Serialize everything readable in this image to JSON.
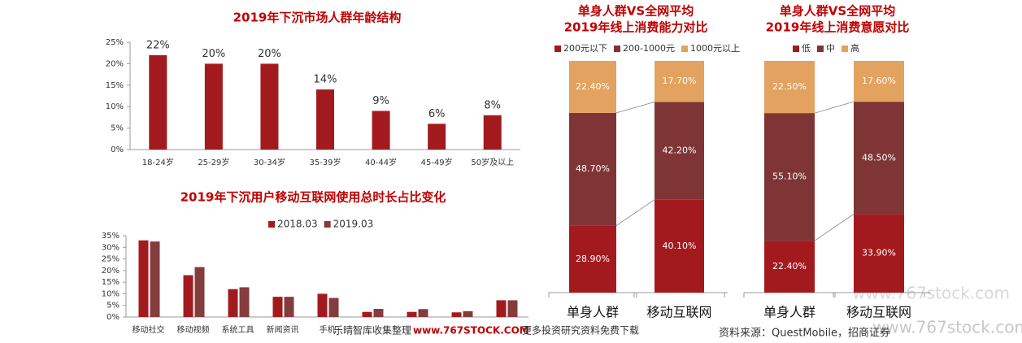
{
  "chart_data": [
    {
      "type": "bar",
      "title": "2019年下沉市场人群年龄结构",
      "categories": [
        "18-24岁",
        "25-29岁",
        "30-34岁",
        "35-39岁",
        "40-44岁",
        "45-49岁",
        "50岁及以上"
      ],
      "values": [
        22,
        20,
        20,
        14,
        9,
        6,
        8
      ],
      "value_labels": [
        "22%",
        "20%",
        "20%",
        "14%",
        "9%",
        "6%",
        "8%"
      ],
      "color": "#a31a1e",
      "ylim": [
        0,
        25
      ],
      "yticks": [
        {
          "value": 0,
          "label": "0%"
        },
        {
          "value": 5,
          "label": "5%"
        },
        {
          "value": 10,
          "label": "10%"
        },
        {
          "value": 15,
          "label": "15%"
        },
        {
          "value": 20,
          "label": "20%"
        },
        {
          "value": 25,
          "label": "25%"
        }
      ]
    },
    {
      "type": "grouped_bar",
      "title": "2019年下沉用户移动互联网使用总时长占比变化",
      "categories": [
        "移动社交",
        "移动视频",
        "系统工具",
        "新闻资讯",
        "手机",
        null,
        null,
        null,
        null
      ],
      "series": [
        {
          "name": "2018.03",
          "color": "#a31a1e",
          "values": [
            33,
            18,
            12,
            8.7,
            10,
            2.2,
            2.2,
            2,
            7.2
          ]
        },
        {
          "name": "2019.03",
          "color": "#843c3c",
          "values": [
            32.5,
            21.5,
            12.8,
            8.7,
            8.2,
            3.5,
            3.4,
            2.5,
            7.2
          ]
        }
      ],
      "legend": "top",
      "ylim": [
        0,
        35
      ],
      "yticks": [
        {
          "value": 0,
          "label": "0%"
        },
        {
          "value": 5,
          "label": "5%"
        },
        {
          "value": 10,
          "label": "10%"
        },
        {
          "value": 15,
          "label": "15%"
        },
        {
          "value": 20,
          "label": "20%"
        },
        {
          "value": 25,
          "label": "25%"
        },
        {
          "value": 30,
          "label": "30%"
        },
        {
          "value": 35,
          "label": "35%"
        }
      ]
    },
    {
      "type": "stacked_bar",
      "title": [
        "单身人群VS全网平均",
        "2019年线上消费能力对比"
      ],
      "categories": [
        "单身人群",
        "移动互联网"
      ],
      "series": [
        {
          "name": "200元以下",
          "color": "#a31a1e",
          "values": [
            28.9,
            40.1
          ],
          "value_labels": [
            "28.90%",
            "40.10%"
          ]
        },
        {
          "name": "200-1000元",
          "color": "#7f3535",
          "values": [
            48.7,
            42.2
          ],
          "value_labels": [
            "48.70%",
            "42.20%"
          ]
        },
        {
          "name": "1000元以上",
          "color": "#e3a25f",
          "values": [
            22.4,
            17.7
          ],
          "value_labels": [
            "22.40%",
            "17.70%"
          ]
        }
      ],
      "legend": "top",
      "ylim": [
        0,
        100
      ]
    },
    {
      "type": "stacked_bar",
      "title": [
        "单身人群VS全网平均",
        "2019年线上消费意愿对比"
      ],
      "categories": [
        "单身人群",
        "移动互联网"
      ],
      "series": [
        {
          "name": "低",
          "color": "#a31a1e",
          "values": [
            22.4,
            33.9
          ],
          "value_labels": [
            "22.40%",
            "33.90%"
          ]
        },
        {
          "name": "中",
          "color": "#7f3535",
          "values": [
            55.1,
            48.5
          ],
          "value_labels": [
            "55.10%",
            "48.50%"
          ]
        },
        {
          "name": "高",
          "color": "#e3a25f",
          "values": [
            22.5,
            17.6
          ],
          "value_labels": [
            "22.50%",
            "17.60%"
          ]
        }
      ],
      "legend": "top",
      "ylim": [
        0,
        100
      ]
    }
  ],
  "source": "资料来源：QuestMobile，招商证券",
  "banner": [
    "乐晴智库收集整理",
    "www.767STOCK.COM",
    "更多投资研究资料免费下载"
  ],
  "watermarks": [
    "www.767stock.com",
    "www.767stock.com"
  ]
}
